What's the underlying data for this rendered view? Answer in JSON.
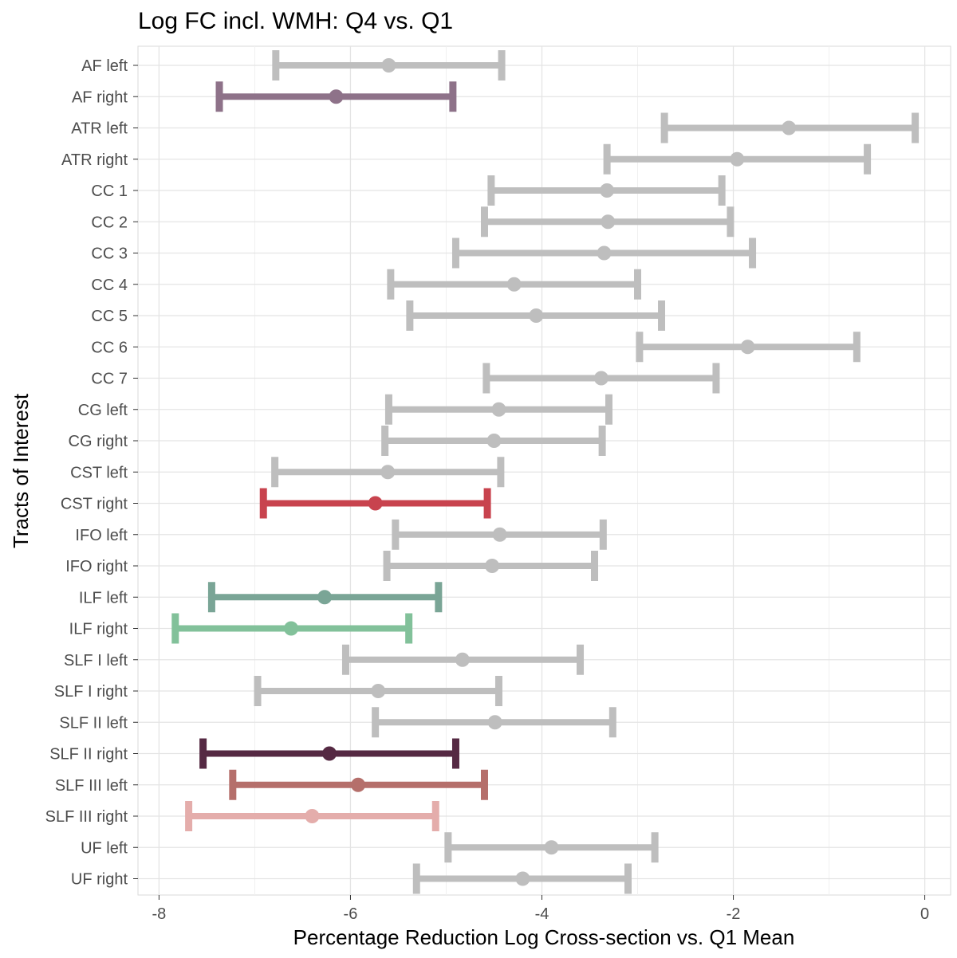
{
  "chart_data": {
    "type": "errorbar",
    "title": "Log FC incl. WMH: Q4 vs. Q1",
    "xlabel": "Percentage Reduction Log Cross-section vs. Q1 Mean",
    "ylabel": "Tracts of Interest",
    "xlim": [
      -8.22,
      0.27
    ],
    "xticks": [
      -8,
      -6,
      -4,
      -2,
      0
    ],
    "xtick_labels": [
      "-8",
      "-6",
      "-4",
      "-2",
      "0"
    ],
    "grid": true,
    "default_color": "#bebebe",
    "points": [
      {
        "label": "AF left",
        "mean": -5.6,
        "lower": -6.78,
        "upper": -4.42,
        "color": "#bebebe"
      },
      {
        "label": "AF right",
        "mean": -6.15,
        "lower": -7.37,
        "upper": -4.93,
        "color": "#8e7289"
      },
      {
        "label": "ATR left",
        "mean": -1.42,
        "lower": -2.72,
        "upper": -0.1,
        "color": "#bebebe"
      },
      {
        "label": "ATR right",
        "mean": -1.96,
        "lower": -3.32,
        "upper": -0.6,
        "color": "#bebebe"
      },
      {
        "label": "CC 1",
        "mean": -3.32,
        "lower": -4.53,
        "upper": -2.12,
        "color": "#bebebe"
      },
      {
        "label": "CC 2",
        "mean": -3.31,
        "lower": -4.6,
        "upper": -2.03,
        "color": "#bebebe"
      },
      {
        "label": "CC 3",
        "mean": -3.35,
        "lower": -4.9,
        "upper": -1.8,
        "color": "#bebebe"
      },
      {
        "label": "CC 4",
        "mean": -4.29,
        "lower": -5.58,
        "upper": -3.0,
        "color": "#bebebe"
      },
      {
        "label": "CC 5",
        "mean": -4.06,
        "lower": -5.38,
        "upper": -2.75,
        "color": "#bebebe"
      },
      {
        "label": "CC 6",
        "mean": -1.85,
        "lower": -2.98,
        "upper": -0.71,
        "color": "#bebebe"
      },
      {
        "label": "CC 7",
        "mean": -3.38,
        "lower": -4.58,
        "upper": -2.18,
        "color": "#bebebe"
      },
      {
        "label": "CG left",
        "mean": -4.45,
        "lower": -5.6,
        "upper": -3.3,
        "color": "#bebebe"
      },
      {
        "label": "CG right",
        "mean": -4.5,
        "lower": -5.64,
        "upper": -3.37,
        "color": "#bebebe"
      },
      {
        "label": "CST left",
        "mean": -5.61,
        "lower": -6.79,
        "upper": -4.43,
        "color": "#bebebe"
      },
      {
        "label": "CST right",
        "mean": -5.74,
        "lower": -6.91,
        "upper": -4.57,
        "color": "#c8434e"
      },
      {
        "label": "IFO left",
        "mean": -4.44,
        "lower": -5.53,
        "upper": -3.36,
        "color": "#bebebe"
      },
      {
        "label": "IFO right",
        "mean": -4.52,
        "lower": -5.62,
        "upper": -3.45,
        "color": "#bebebe"
      },
      {
        "label": "ILF left",
        "mean": -6.27,
        "lower": -7.45,
        "upper": -5.08,
        "color": "#7aa596"
      },
      {
        "label": "ILF right",
        "mean": -6.62,
        "lower": -7.83,
        "upper": -5.39,
        "color": "#82c19a"
      },
      {
        "label": "SLF I left",
        "mean": -4.83,
        "lower": -6.05,
        "upper": -3.6,
        "color": "#bebebe"
      },
      {
        "label": "SLF I right",
        "mean": -5.71,
        "lower": -6.97,
        "upper": -4.45,
        "color": "#bebebe"
      },
      {
        "label": "SLF II left",
        "mean": -4.49,
        "lower": -5.74,
        "upper": -3.26,
        "color": "#bebebe"
      },
      {
        "label": "SLF II right",
        "mean": -6.22,
        "lower": -7.54,
        "upper": -4.9,
        "color": "#552943"
      },
      {
        "label": "SLF III left",
        "mean": -5.92,
        "lower": -7.23,
        "upper": -4.6,
        "color": "#b56f6b"
      },
      {
        "label": "SLF III right",
        "mean": -6.4,
        "lower": -7.69,
        "upper": -5.11,
        "color": "#e4adab"
      },
      {
        "label": "UF left",
        "mean": -3.9,
        "lower": -4.98,
        "upper": -2.82,
        "color": "#bebebe"
      },
      {
        "label": "UF right",
        "mean": -4.2,
        "lower": -5.31,
        "upper": -3.1,
        "color": "#bebebe"
      }
    ]
  }
}
